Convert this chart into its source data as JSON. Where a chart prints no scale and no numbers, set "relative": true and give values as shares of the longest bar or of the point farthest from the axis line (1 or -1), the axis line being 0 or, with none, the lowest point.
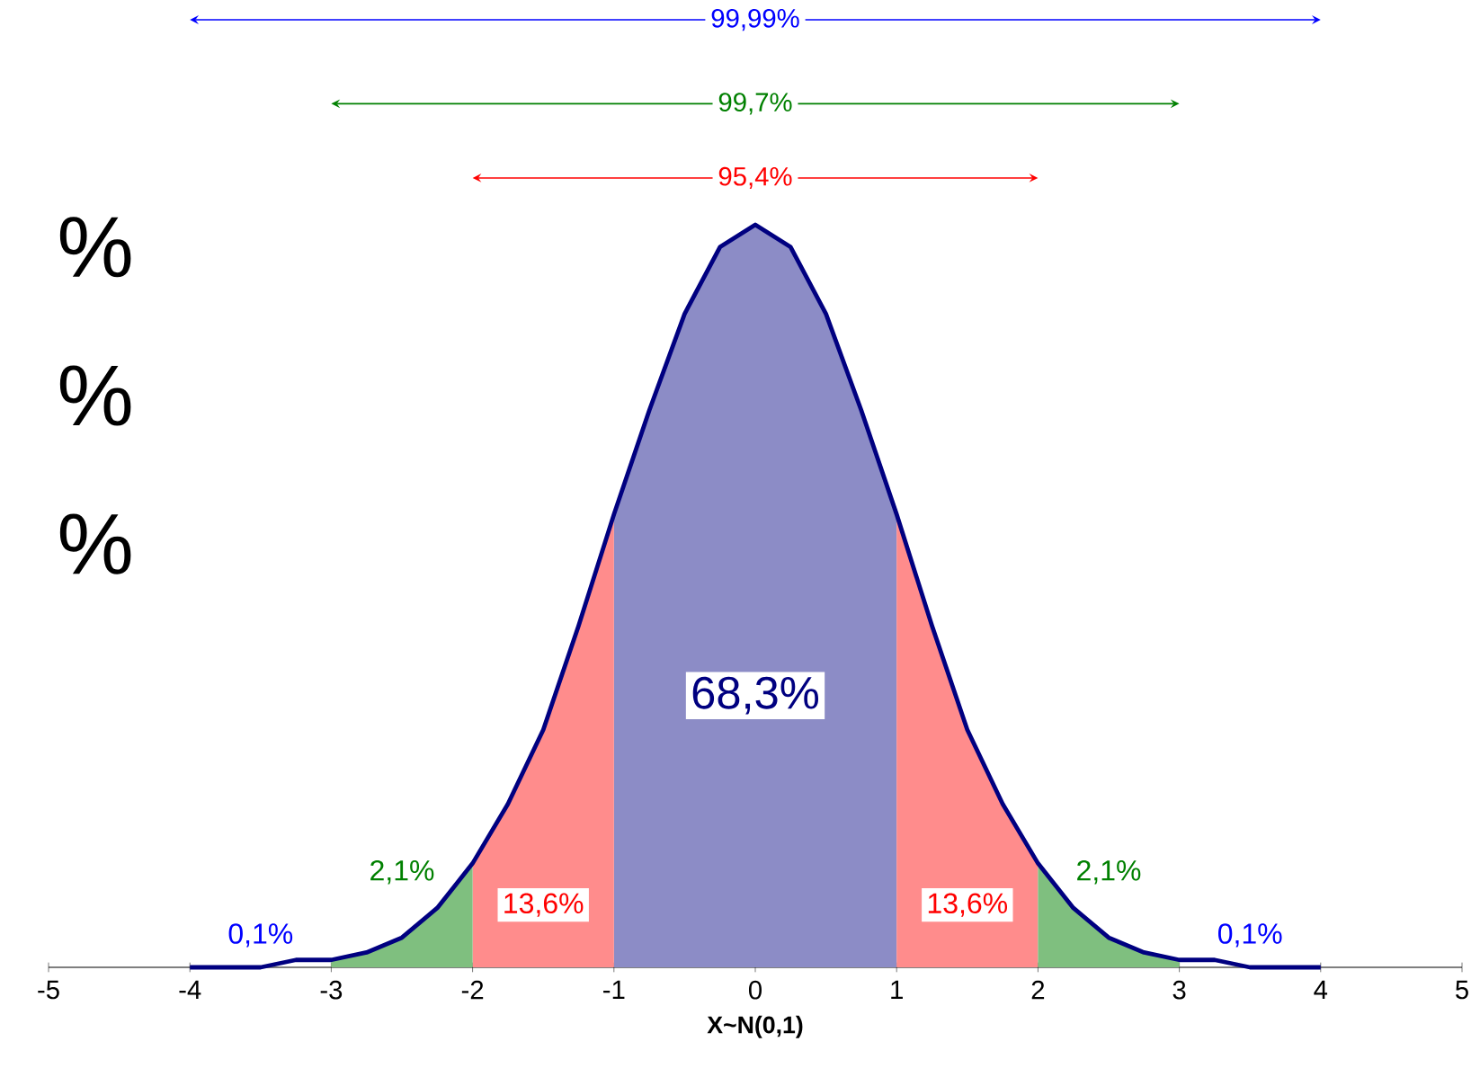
{
  "chart_data": {
    "type": "area",
    "relative": true,
    "xlabel": "X~N(0,1)",
    "xlim": [
      -5,
      5
    ],
    "xticks": [
      -5,
      -4,
      -3,
      -2,
      -1,
      0,
      1,
      2,
      3,
      4,
      5
    ],
    "series": [
      {
        "color": "#8c8cc6",
        "x": [
          -1,
          -0.75,
          -0.5,
          -0.25,
          0,
          0.25,
          0.5,
          0.75,
          1
        ],
        "values": [
          0.61,
          0.75,
          0.88,
          0.97,
          1,
          0.97,
          0.88,
          0.75,
          0.61
        ]
      },
      {
        "color": "#ff8c8c",
        "x": [
          -2,
          -1.75,
          -1.5,
          -1.25,
          -1
        ],
        "values": [
          0.14,
          0.22,
          0.32,
          0.46,
          0.61
        ]
      },
      {
        "color": "#ff8c8c",
        "x": [
          1,
          1.25,
          1.5,
          1.75,
          2
        ],
        "values": [
          0.61,
          0.46,
          0.32,
          0.22,
          0.14
        ]
      },
      {
        "color": "#7fbf7f",
        "x": [
          -3,
          -2.75,
          -2.5,
          -2.25,
          -2
        ],
        "values": [
          0.01,
          0.02,
          0.04,
          0.08,
          0.14
        ]
      },
      {
        "color": "#7fbf7f",
        "x": [
          2,
          2.25,
          2.5,
          2.75,
          3
        ],
        "values": [
          0.14,
          0.08,
          0.04,
          0.02,
          0.01
        ]
      },
      {
        "type": "line",
        "color": "#000080",
        "x": [
          -4,
          -3.75,
          -3.5,
          -3.25,
          -3,
          -2.75,
          -2.5,
          -2.25,
          -2,
          -1.75,
          -1.5,
          -1.25,
          -1,
          -0.75,
          -0.5,
          -0.25,
          0,
          0.25,
          0.5,
          0.75,
          1,
          1.25,
          1.5,
          1.75,
          2,
          2.25,
          2.5,
          2.75,
          3,
          3.25,
          3.5,
          3.75,
          4
        ],
        "values": [
          0,
          0,
          0,
          0.01,
          0.01,
          0.02,
          0.04,
          0.08,
          0.14,
          0.22,
          0.32,
          0.46,
          0.61,
          0.75,
          0.88,
          0.97,
          1,
          0.97,
          0.88,
          0.75,
          0.61,
          0.46,
          0.32,
          0.22,
          0.14,
          0.08,
          0.04,
          0.02,
          0.01,
          0.01,
          0,
          0,
          0
        ]
      }
    ],
    "annotations": [
      "68,3%",
      "13,6%",
      "13,6%",
      "2,1%",
      "2,1%",
      "95,4%",
      "99,7%",
      "99,99%",
      "0,1%",
      "0,1%",
      "%",
      "%",
      "%"
    ]
  }
}
